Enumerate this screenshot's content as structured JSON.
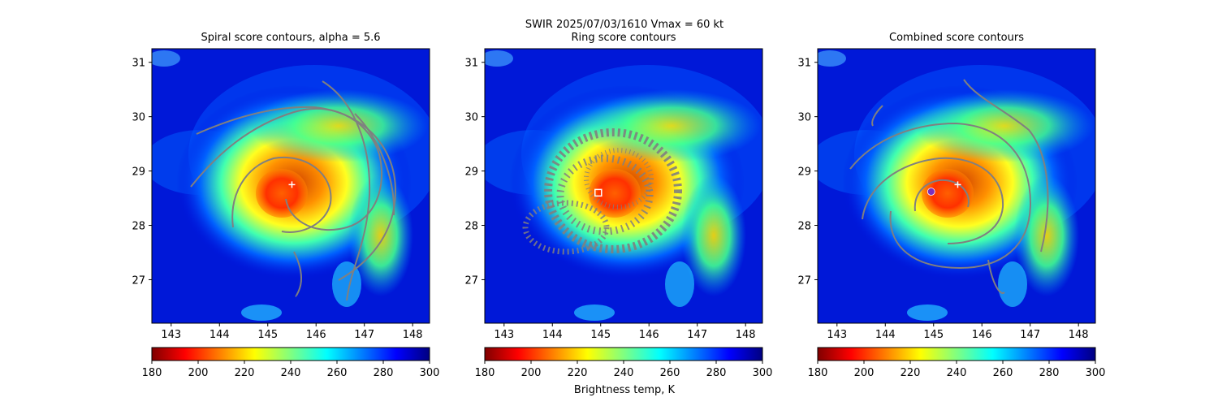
{
  "suptitle": "SWIR  2025/07/03/1610    Vmax = 60 kt",
  "colorbar_label": "Brightness temp, K",
  "chart_data": [
    {
      "type": "heatmap",
      "title": "Spiral score contours, alpha =  5.6",
      "xlim": [
        142.6,
        148.35
      ],
      "ylim": [
        26.2,
        31.25
      ],
      "xticks": [
        "143",
        "144",
        "145",
        "146",
        "147",
        "148"
      ],
      "yticks": [
        "27",
        "28",
        "29",
        "30",
        "31"
      ],
      "colorbar": {
        "range": [
          180,
          300
        ],
        "ticks": [
          "180",
          "200",
          "220",
          "240",
          "260",
          "280",
          "300"
        ],
        "colormap": "jet_r"
      },
      "marker": {
        "type": "plus",
        "x": 145.5,
        "y": 28.75,
        "color": "#ffffff"
      },
      "contour_color": "#808080"
    },
    {
      "type": "heatmap",
      "title": "Ring score contours",
      "xlim": [
        142.6,
        148.35
      ],
      "ylim": [
        26.2,
        31.25
      ],
      "xticks": [
        "143",
        "144",
        "145",
        "146",
        "147",
        "148"
      ],
      "yticks": [
        "27",
        "28",
        "29",
        "30",
        "31"
      ],
      "colorbar": {
        "range": [
          180,
          300
        ],
        "ticks": [
          "180",
          "200",
          "220",
          "240",
          "260",
          "280",
          "300"
        ],
        "colormap": "jet_r"
      },
      "marker": {
        "type": "square",
        "x": 144.95,
        "y": 28.6,
        "color": "#ffffff"
      },
      "contour_color": "#808080"
    },
    {
      "type": "heatmap",
      "title": "Combined score contours",
      "xlim": [
        142.6,
        148.35
      ],
      "ylim": [
        26.2,
        31.25
      ],
      "xticks": [
        "143",
        "144",
        "145",
        "146",
        "147",
        "148"
      ],
      "yticks": [
        "27",
        "28",
        "29",
        "30",
        "31"
      ],
      "colorbar": {
        "range": [
          180,
          300
        ],
        "ticks": [
          "180",
          "200",
          "220",
          "240",
          "260",
          "280",
          "300"
        ],
        "colormap": "jet_r"
      },
      "marker": {
        "type": "plus",
        "x": 145.5,
        "y": 28.75,
        "color": "#ffffff"
      },
      "marker2": {
        "type": "circle",
        "x": 144.95,
        "y": 28.62,
        "color": "#7b2fbe"
      },
      "contour_color": "#808080"
    }
  ]
}
